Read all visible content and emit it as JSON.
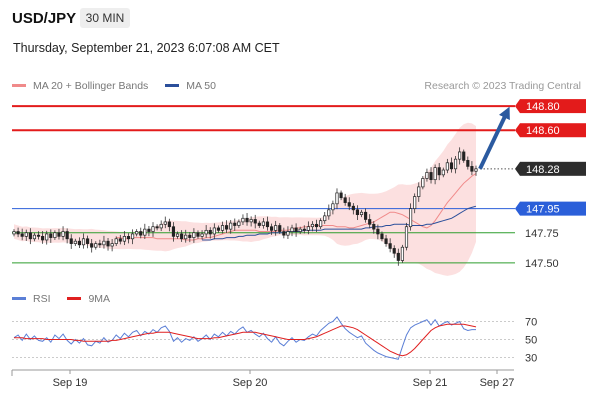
{
  "header": {
    "symbol": "USD/JPY",
    "timeframe": "30 MIN",
    "datetime": "Thursday, September 21, 2023 6:07:08 AM CET"
  },
  "legend": {
    "items": [
      {
        "label": "MA 20 + Bollinger Bands",
        "color": "#f08a8a"
      },
      {
        "label": "MA 50",
        "color": "#2b4f9b"
      }
    ],
    "copyright": "Research © 2023 Trading Central"
  },
  "rsi_legend": {
    "items": [
      {
        "label": "RSI",
        "color": "#5b7fd6"
      },
      {
        "label": "9MA",
        "color": "#e02020"
      }
    ]
  },
  "chart_data": [
    {
      "type": "candlestick",
      "title": "USD/JPY",
      "ylim": [
        147.35,
        148.95
      ],
      "x_labels": [
        "Sep 19",
        "Sep 20",
        "Sep 21",
        "Sep 27"
      ],
      "levels": [
        {
          "label": "148.80",
          "value": 148.8,
          "kind": "resistance",
          "color": "#e31b1b"
        },
        {
          "label": "148.60",
          "value": 148.6,
          "kind": "resistance",
          "color": "#e31b1b"
        },
        {
          "label": "148.28",
          "value": 148.28,
          "kind": "last",
          "color": "#333333"
        },
        {
          "label": "147.95",
          "value": 147.95,
          "kind": "pivot",
          "color": "#2b5fd9"
        },
        {
          "label": "147.75",
          "value": 147.75,
          "kind": "support",
          "color": "#2e9e2e"
        },
        {
          "label": "147.50",
          "value": 147.5,
          "kind": "support",
          "color": "#2e9e2e"
        }
      ],
      "close": [
        147.76,
        147.74,
        147.72,
        147.75,
        147.7,
        147.73,
        147.72,
        147.69,
        147.74,
        147.71,
        147.75,
        147.72,
        147.76,
        147.7,
        147.66,
        147.68,
        147.65,
        147.7,
        147.66,
        147.63,
        147.66,
        147.65,
        147.68,
        147.64,
        147.66,
        147.7,
        147.68,
        147.72,
        147.7,
        147.74,
        147.76,
        147.73,
        147.78,
        147.76,
        147.8,
        147.79,
        147.82,
        147.84,
        147.8,
        147.72,
        147.74,
        147.7,
        147.73,
        147.71,
        147.75,
        147.72,
        147.74,
        147.77,
        147.74,
        147.79,
        147.77,
        147.81,
        147.78,
        147.83,
        147.81,
        147.84,
        147.87,
        147.84,
        147.86,
        147.83,
        147.81,
        147.84,
        147.8,
        147.77,
        147.81,
        147.76,
        147.73,
        147.76,
        147.79,
        147.76,
        147.78,
        147.77,
        147.8,
        147.82,
        147.8,
        147.85,
        147.89,
        147.94,
        147.99,
        148.08,
        148.04,
        148.0,
        147.97,
        147.94,
        147.9,
        147.92,
        147.86,
        147.82,
        147.78,
        147.74,
        147.7,
        147.66,
        147.62,
        147.58,
        147.52,
        147.63,
        147.8,
        147.95,
        148.05,
        148.13,
        148.2,
        148.25,
        148.19,
        148.29,
        148.23,
        148.27,
        148.33,
        148.28,
        148.36,
        148.42,
        148.35,
        148.3,
        148.26,
        148.28
      ],
      "ma20": [
        147.71,
        147.71,
        147.7,
        147.7,
        147.71,
        147.71,
        147.71,
        147.71,
        147.71,
        147.71,
        147.7,
        147.7,
        147.7,
        147.7,
        147.7,
        147.7,
        147.7,
        147.69,
        147.69,
        147.69,
        147.7,
        147.7,
        147.71,
        147.71,
        147.72,
        147.73,
        147.74,
        147.75,
        147.76,
        147.77,
        147.77,
        147.77,
        147.77,
        147.77,
        147.77,
        147.76,
        147.76,
        147.76,
        147.76,
        147.76,
        147.77,
        147.77,
        147.77,
        147.78,
        147.79,
        147.79,
        147.8,
        147.8,
        147.81,
        147.81,
        147.81,
        147.81,
        147.81,
        147.81,
        147.8,
        147.8,
        147.8,
        147.79,
        147.79,
        147.8,
        147.81,
        147.82,
        147.83,
        147.84,
        147.86,
        147.88,
        147.9,
        147.92,
        147.92,
        147.91,
        147.9,
        147.88,
        147.86,
        147.84,
        147.82,
        147.8,
        147.79,
        147.81,
        147.85,
        147.9,
        147.95,
        148.0,
        148.04,
        148.08,
        148.12,
        148.16,
        148.19,
        148.22,
        148.24
      ],
      "ma50": [
        147.69,
        147.69,
        147.69,
        147.7,
        147.7,
        147.7,
        147.71,
        147.71,
        147.71,
        147.72,
        147.72,
        147.73,
        147.73,
        147.73,
        147.74,
        147.74,
        147.74,
        147.75,
        147.75,
        147.75,
        147.75,
        147.76,
        147.76,
        147.76,
        147.76,
        147.77,
        147.77,
        147.77,
        147.77,
        147.77,
        147.78,
        147.78,
        147.78,
        147.78,
        147.78,
        147.78,
        147.78,
        147.78,
        147.78,
        147.78,
        147.79,
        147.79,
        147.8,
        147.8,
        147.8,
        147.81,
        147.81,
        147.82,
        147.82,
        147.82,
        147.82,
        147.81,
        147.81,
        147.81,
        147.81,
        147.82,
        147.82,
        147.83,
        147.84,
        147.85,
        147.86,
        147.87,
        147.89,
        147.91,
        147.93,
        147.95,
        147.96,
        147.97
      ],
      "arrow": {
        "from": 148.28,
        "to": 148.8,
        "color": "#2b5aa0"
      }
    },
    {
      "type": "line",
      "title": "RSI",
      "ylim": [
        25,
        75
      ],
      "y_ticks": [
        30,
        50,
        70
      ],
      "series": [
        {
          "name": "RSI",
          "color": "#5b7fd6",
          "values": [
            52,
            55,
            49,
            56,
            50,
            54,
            49,
            48,
            52,
            47,
            55,
            51,
            56,
            49,
            45,
            50,
            46,
            51,
            44,
            43,
            48,
            46,
            52,
            47,
            49,
            55,
            51,
            57,
            53,
            58,
            60,
            54,
            59,
            56,
            61,
            58,
            63,
            65,
            59,
            48,
            52,
            47,
            51,
            49,
            53,
            48,
            51,
            55,
            50,
            56,
            53,
            58,
            54,
            59,
            56,
            61,
            64,
            58,
            60,
            56,
            53,
            57,
            51,
            47,
            53,
            46,
            43,
            48,
            52,
            47,
            50,
            49,
            53,
            56,
            54,
            60,
            64,
            68,
            70,
            75,
            68,
            62,
            58,
            55,
            52,
            54,
            46,
            42,
            38,
            35,
            33,
            31,
            30,
            29,
            28,
            42,
            55,
            63,
            66,
            68,
            70,
            72,
            66,
            72,
            65,
            68,
            70,
            66,
            68,
            70,
            62,
            60,
            61,
            61
          ]
        },
        {
          "name": "9MA",
          "color": "#e02020",
          "values": [
            52,
            52,
            52,
            51,
            51,
            51,
            51,
            51,
            50,
            50,
            50,
            50,
            50,
            50,
            50,
            49,
            49,
            48,
            48,
            48,
            48,
            48,
            48,
            48,
            49,
            49,
            50,
            51,
            52,
            53,
            54,
            55,
            56,
            57,
            57,
            58,
            58,
            58,
            58,
            57,
            56,
            55,
            54,
            53,
            52,
            51,
            51,
            51,
            51,
            52,
            52,
            53,
            54,
            55,
            56,
            57,
            58,
            58,
            58,
            58,
            57,
            56,
            55,
            54,
            53,
            52,
            51,
            50,
            50,
            50,
            50,
            50,
            51,
            52,
            53,
            55,
            57,
            59,
            61,
            63,
            65,
            65,
            64,
            63,
            61,
            58,
            55,
            52,
            49,
            46,
            43,
            40,
            37,
            35,
            33,
            32,
            33,
            36,
            40,
            45,
            50,
            55,
            60,
            63,
            65,
            66,
            67,
            67,
            67,
            67,
            67,
            66,
            65,
            64
          ]
        }
      ]
    }
  ]
}
